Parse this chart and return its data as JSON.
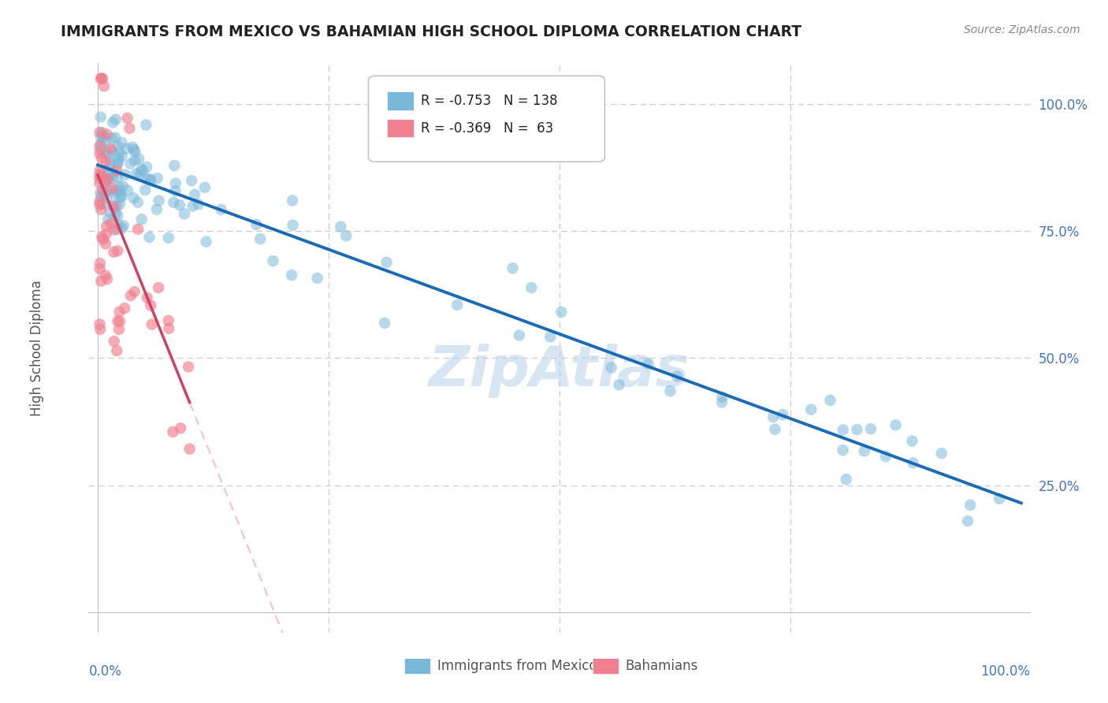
{
  "title": "IMMIGRANTS FROM MEXICO VS BAHAMIAN HIGH SCHOOL DIPLOMA CORRELATION CHART",
  "source": "Source: ZipAtlas.com",
  "ylabel": "High School Diploma",
  "legend_blue_r": "-0.753",
  "legend_blue_n": "138",
  "legend_pink_r": "-0.369",
  "legend_pink_n": " 63",
  "legend_label_blue": "Immigrants from Mexico",
  "legend_label_pink": "Bahamians",
  "ytick_labels": [
    "100.0%",
    "75.0%",
    "50.0%",
    "25.0%"
  ],
  "ytick_values": [
    1.0,
    0.75,
    0.5,
    0.25
  ],
  "watermark": "ZipAtlas",
  "blue_color": "#7ab8d9",
  "blue_line_color": "#1a6bb5",
  "pink_color": "#f08090",
  "pink_line_color": "#d04060",
  "pink_dash_color": "#f0a0b0",
  "background_color": "#ffffff",
  "grid_color": "#cccccc",
  "title_color": "#222222",
  "axis_label_color": "#555555",
  "blue_intercept": 0.88,
  "blue_slope": -0.665,
  "pink_intercept": 0.86,
  "pink_slope": -4.5,
  "pink_dash_intercept": 0.86,
  "pink_dash_slope": -4.5
}
